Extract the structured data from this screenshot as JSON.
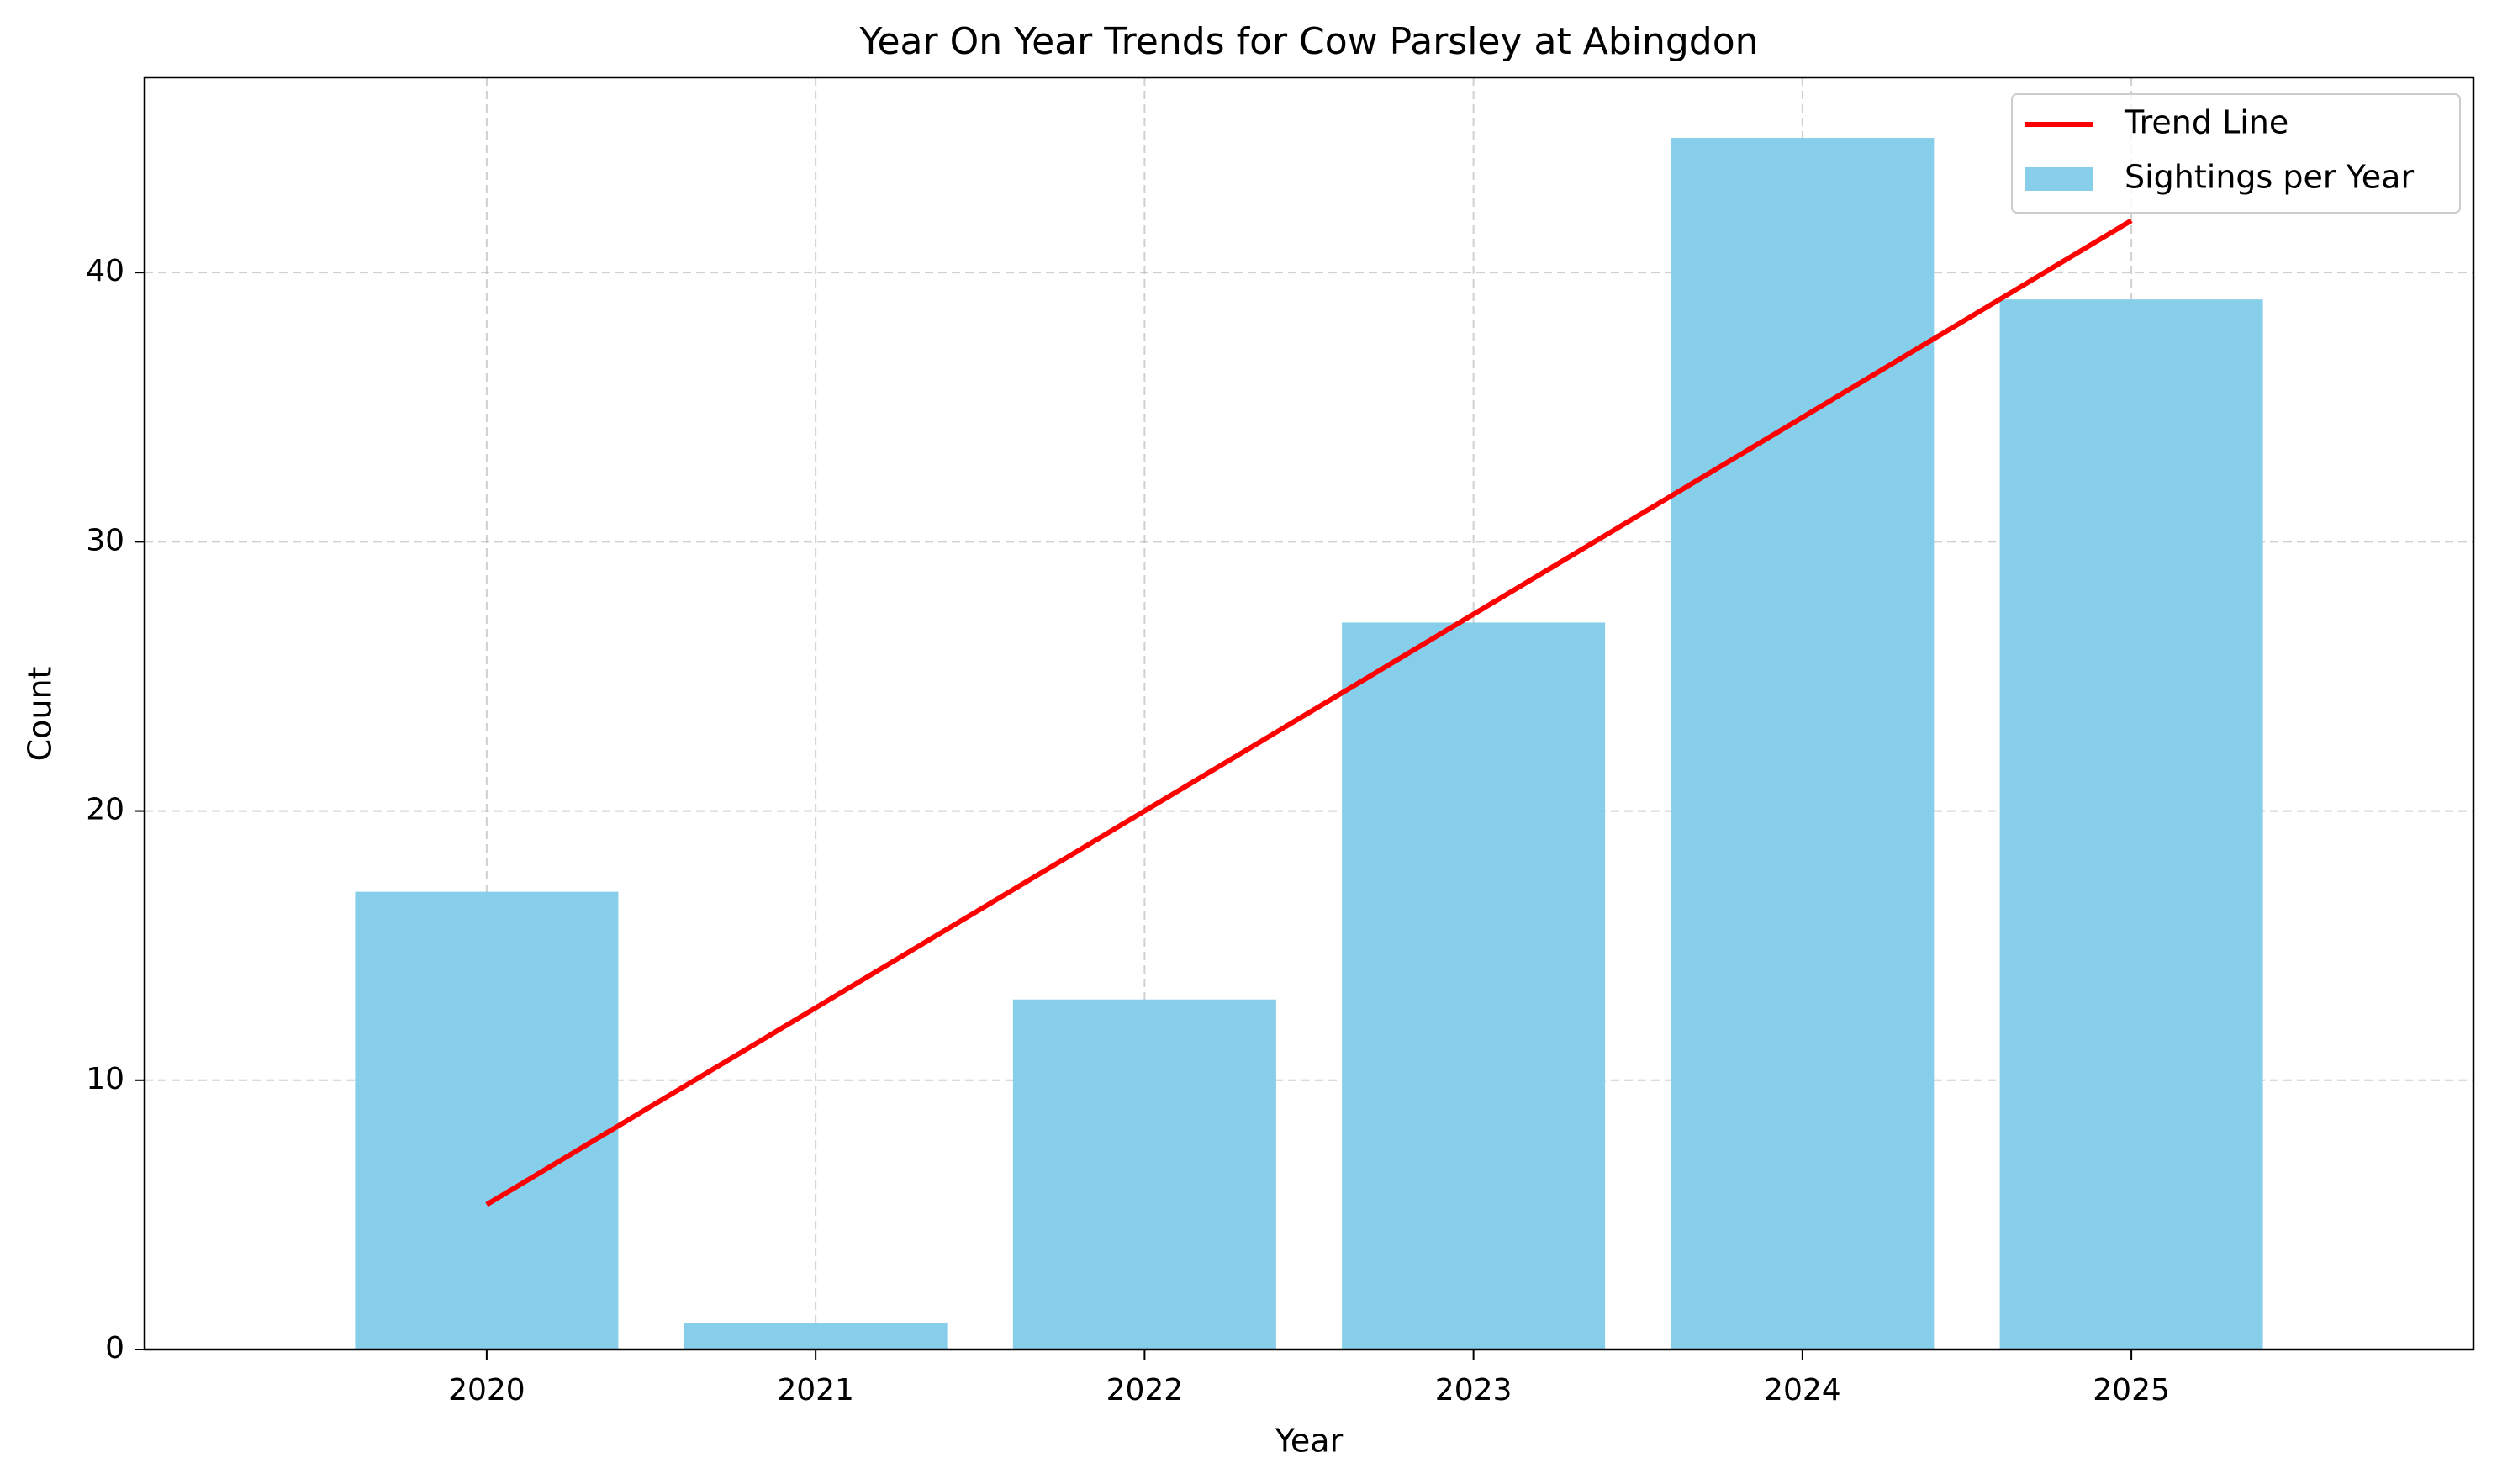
{
  "chart_data": {
    "type": "bar",
    "title": "Year On Year Trends for Cow Parsley at Abingdon",
    "xlabel": "Year",
    "ylabel": "Count",
    "categories": [
      "2020",
      "2021",
      "2022",
      "2023",
      "2024",
      "2025"
    ],
    "series": [
      {
        "name": "Sightings per Year",
        "type": "bar",
        "values": [
          17,
          1,
          13,
          27,
          45,
          39
        ],
        "color": "#87ceeb"
      },
      {
        "name": "Trend Line",
        "type": "line",
        "values": [
          5.38,
          12.69,
          20.0,
          27.31,
          34.62,
          41.93
        ],
        "color": "#ff0000"
      }
    ],
    "ylim": [
      0,
      47.25
    ],
    "yticks": [
      0,
      10,
      20,
      30,
      40
    ],
    "grid": true,
    "legend": {
      "position": "top-right",
      "entries": [
        "Trend Line",
        "Sightings per Year"
      ]
    }
  }
}
